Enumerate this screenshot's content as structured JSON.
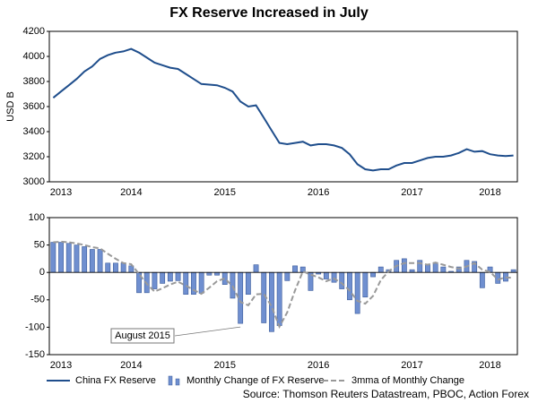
{
  "chart_data": [
    {
      "type": "line",
      "title": "FX Reserve Increased in July",
      "ylabel": "USD B",
      "categories": [
        null,
        "2013",
        null,
        null,
        null,
        null,
        null,
        null,
        null,
        null,
        "2014",
        null,
        null,
        null,
        null,
        null,
        null,
        null,
        null,
        null,
        null,
        null,
        "2015",
        null,
        null,
        null,
        null,
        null,
        null,
        null,
        null,
        null,
        null,
        null,
        "2016",
        null,
        null,
        null,
        null,
        null,
        null,
        null,
        null,
        null,
        null,
        null,
        "2017",
        null,
        null,
        null,
        null,
        null,
        null,
        null,
        null,
        null,
        "2018",
        null,
        null,
        null
      ],
      "series": [
        {
          "name": "China FX Reserve",
          "color": "#1f4e8c",
          "values": [
            3670,
            3720,
            3770,
            3820,
            3880,
            3920,
            3980,
            4010,
            4030,
            4040,
            4060,
            4030,
            3990,
            3950,
            3930,
            3910,
            3900,
            3860,
            3820,
            3780,
            3775,
            3770,
            3750,
            3720,
            3640,
            3600,
            3610,
            3510,
            3410,
            3310,
            3300,
            3310,
            3320,
            3290,
            3300,
            3300,
            3290,
            3270,
            3220,
            3140,
            3100,
            3090,
            3100,
            3100,
            3130,
            3150,
            3150,
            3170,
            3190,
            3200,
            3200,
            3210,
            3230,
            3260,
            3240,
            3245,
            3220,
            3210,
            3205,
            3210
          ]
        }
      ],
      "ylim": [
        3000,
        4200
      ],
      "yticks": [
        3000,
        3200,
        3400,
        3600,
        3800,
        4000,
        4200
      ]
    },
    {
      "type": "bar",
      "categories": [
        null,
        "2013",
        null,
        null,
        null,
        null,
        null,
        null,
        null,
        null,
        "2014",
        null,
        null,
        null,
        null,
        null,
        null,
        null,
        null,
        null,
        null,
        null,
        "2015",
        null,
        null,
        null,
        null,
        null,
        null,
        null,
        null,
        null,
        null,
        null,
        "2016",
        null,
        null,
        null,
        null,
        null,
        null,
        null,
        null,
        null,
        null,
        null,
        "2017",
        null,
        null,
        null,
        null,
        null,
        null,
        null,
        null,
        null,
        "2018",
        null,
        null,
        null
      ],
      "series": [
        {
          "name": "Monthly Change of FX Reserve",
          "color": "#6f8fd0",
          "values": [
            55,
            55,
            53,
            50,
            47,
            42,
            42,
            17,
            17,
            17,
            12,
            -37,
            -37,
            -30,
            -20,
            -16,
            -15,
            -40,
            -40,
            -38,
            -5,
            -5,
            -22,
            -47,
            -93,
            -40,
            14,
            -92,
            -108,
            -97,
            -15,
            12,
            10,
            -33,
            -3,
            -12,
            -18,
            -30,
            -50,
            -75,
            -45,
            -8,
            10,
            5,
            22,
            25,
            5,
            22,
            15,
            18,
            10,
            2,
            10,
            22,
            20,
            -28,
            10,
            -20,
            -16,
            5
          ]
        },
        {
          "name": "3mma of Monthly Change",
          "color": "#999999",
          "values": [
            55,
            56,
            55,
            53,
            50,
            46,
            44,
            34,
            25,
            17,
            15,
            -3,
            -21,
            -35,
            -29,
            -22,
            -17,
            -24,
            -32,
            -39,
            -28,
            -16,
            -11,
            -25,
            -54,
            -60,
            -40,
            -39,
            -62,
            -99,
            -73,
            -33,
            2,
            -4,
            -9,
            -16,
            -11,
            -20,
            -33,
            -52,
            -57,
            -43,
            -14,
            2,
            12,
            17,
            17,
            17,
            14,
            18,
            14,
            10,
            7,
            11,
            17,
            5,
            1,
            -13,
            -9,
            -10
          ]
        }
      ],
      "ylim": [
        -150,
        100
      ],
      "yticks": [
        -150,
        -100,
        -50,
        0,
        50,
        100
      ],
      "annotation": "August 2015",
      "source": "Source: Thomson Reuters Datastream, PBOC, Action Forex"
    }
  ]
}
